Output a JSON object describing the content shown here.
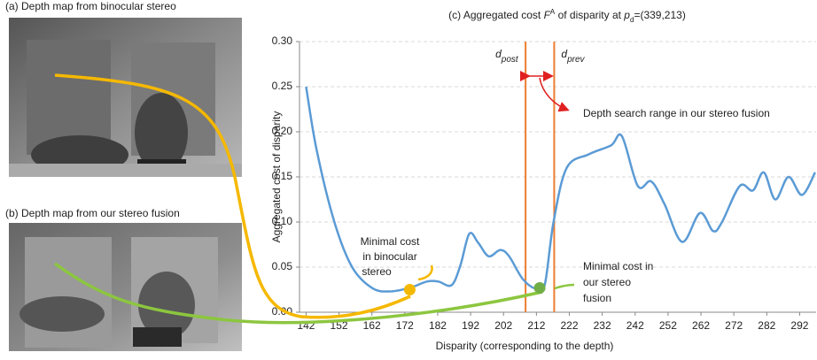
{
  "panel_a": {
    "label": "(a) Depth map from binocular stereo"
  },
  "panel_b": {
    "label": "(b) Depth map from our stereo fusion"
  },
  "chart_data": {
    "type": "line",
    "title_parts": [
      "(c) Aggregated cost ",
      "F",
      "A",
      " of disparity at ",
      "p",
      "d",
      "=(339,213)"
    ],
    "x_label": "Disparity (corresponding to the depth)",
    "y_label": "Aggregated cost of disparity",
    "xlim": [
      140,
      297
    ],
    "ylim": [
      0,
      0.3
    ],
    "xticks": [
      142,
      152,
      162,
      172,
      182,
      192,
      202,
      212,
      222,
      232,
      242,
      252,
      262,
      272,
      282,
      292
    ],
    "yticks": [
      {
        "value": 0,
        "label": "0.00"
      },
      0.05,
      {
        "value": 0.1,
        "label": "0.10"
      },
      0.15,
      {
        "value": 0.2,
        "label": "0.20"
      },
      0.25,
      {
        "value": 0.3,
        "label": "0.30"
      }
    ],
    "grid": true,
    "series": [
      {
        "color": "#5b9bd5",
        "x": [
          142,
          145.2,
          150.6,
          156,
          162,
          167.3,
          173.5,
          178.7,
          182.2,
          186.2,
          188.9,
          191.6,
          194.3,
          197.5,
          201,
          203.7,
          207.8,
          211.8,
          214.5,
          217.2,
          221.2,
          227.9,
          234.7,
          238,
          242.8,
          246.9,
          250.9,
          256.3,
          261.7,
          265.7,
          268.4,
          273.8,
          277.8,
          281.1,
          284.6,
          288.6,
          292.7,
          296.7
        ],
        "values": [
          0.25,
          0.18,
          0.1,
          0.05,
          0.027,
          0.023,
          0.027,
          0.034,
          0.034,
          0.03,
          0.052,
          0.087,
          0.077,
          0.062,
          0.069,
          0.062,
          0.037,
          0.026,
          0.03,
          0.1,
          0.16,
          0.175,
          0.185,
          0.195,
          0.14,
          0.145,
          0.12,
          0.078,
          0.11,
          0.09,
          0.1,
          0.14,
          0.135,
          0.155,
          0.125,
          0.15,
          0.13,
          0.155
        ]
      }
    ],
    "vlines": [
      {
        "x": 208.7,
        "name": [
          "d",
          "post"
        ],
        "color": "#ed7d31"
      },
      {
        "x": 217.4,
        "name": [
          "d",
          "prev"
        ],
        "color": "#ed7d31"
      }
    ],
    "points": [
      {
        "x": 173.5,
        "y": 0.025,
        "color": "#f5b800"
      },
      {
        "x": 213,
        "y": 0.027,
        "color": "#70ad47"
      }
    ],
    "annotations": {
      "search_range": "Depth search range in our stereo fusion",
      "binocular_min": [
        "Minimal cost",
        "in binocular",
        "stereo"
      ],
      "fusion_min": [
        "Minimal cost in",
        "our stereo",
        "fusion"
      ]
    }
  }
}
